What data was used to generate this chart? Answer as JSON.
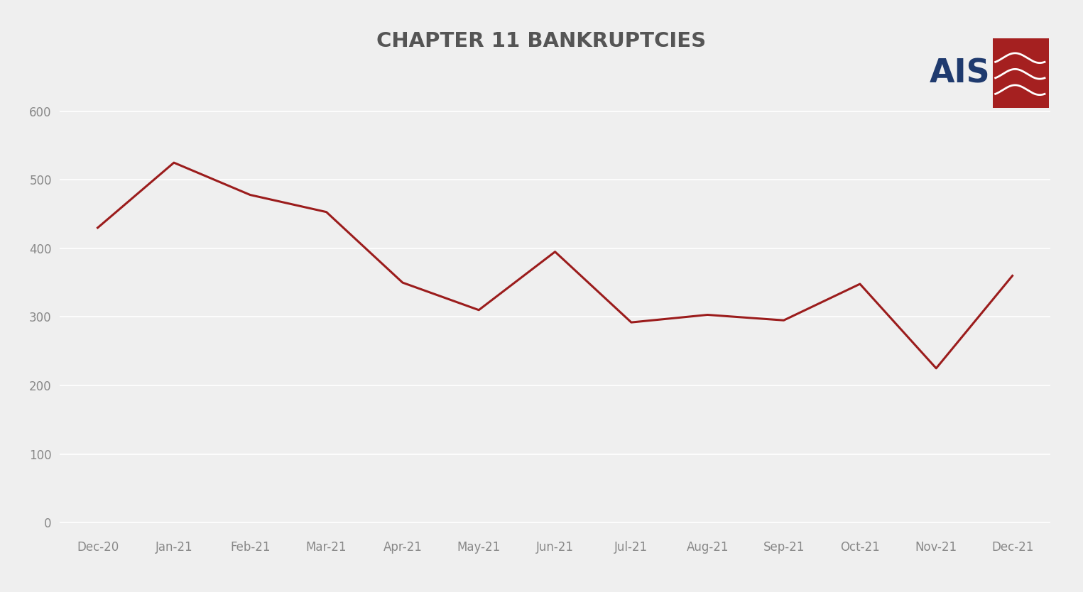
{
  "title": "CHAPTER 11 BANKRUPTCIES",
  "categories": [
    "Dec-20",
    "Jan-21",
    "Feb-21",
    "Mar-21",
    "Apr-21",
    "May-21",
    "Jun-21",
    "Jul-21",
    "Aug-21",
    "Sep-21",
    "Oct-21",
    "Nov-21",
    "Dec-21"
  ],
  "values": [
    430,
    525,
    478,
    453,
    350,
    310,
    395,
    292,
    303,
    295,
    348,
    225,
    360
  ],
  "line_color": "#9B1C1C",
  "background_color": "#EFEFEF",
  "plot_background_color": "#EFEFEF",
  "yticks": [
    0,
    100,
    200,
    300,
    400,
    500,
    600
  ],
  "ylim": [
    -15,
    650
  ],
  "title_fontsize": 21,
  "tick_fontsize": 12,
  "title_color": "#555555",
  "tick_color": "#888888",
  "grid_color": "#FFFFFF",
  "line_width": 2.2,
  "ais_text": "AIS",
  "ais_text_color": "#1F3A6E",
  "ais_box_color": "#A52020"
}
